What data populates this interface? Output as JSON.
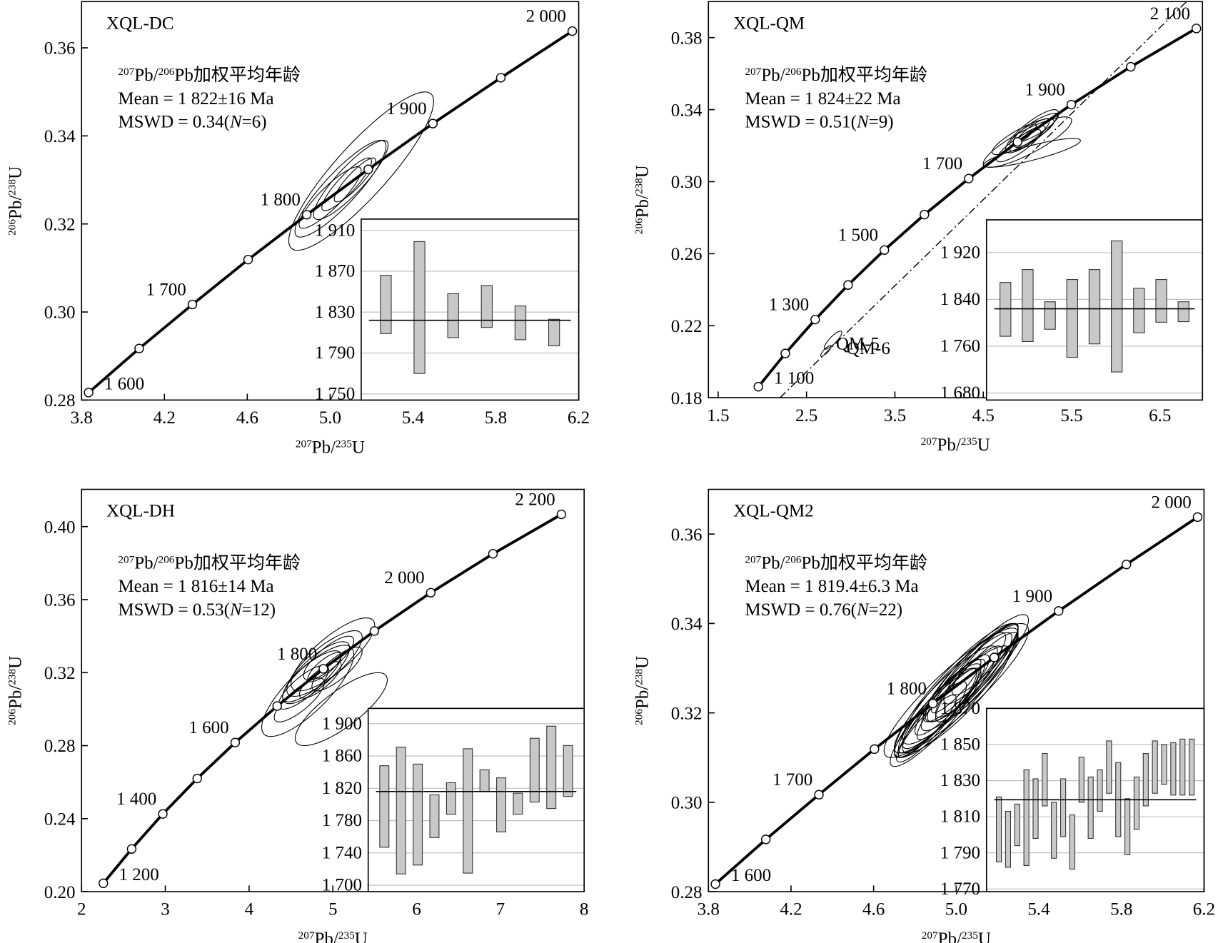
{
  "chart_data": [
    {
      "type": "concordia",
      "title": "XQL-DC",
      "stat_title": [
        {
          "text": "207",
          "sup": true
        },
        {
          "text": "Pb/"
        },
        {
          "text": "206",
          "sup": true
        },
        {
          "text": "Pb加权平均年龄"
        }
      ],
      "stat_mean": [
        {
          "text": "Mean = 1  822±16  Ma"
        }
      ],
      "stat_mswd": [
        {
          "text": "MSWD = 0.34("
        },
        {
          "text": "N",
          "italic": true
        },
        {
          "text": "=6)"
        }
      ],
      "xlabel": [
        {
          "text": "207",
          "sup": true
        },
        {
          "text": "Pb/"
        },
        {
          "text": "235",
          "sup": true
        },
        {
          "text": "U"
        }
      ],
      "ylabel": [
        {
          "text": "206",
          "sup": true
        },
        {
          "text": "Pb/"
        },
        {
          "text": "238",
          "sup": true
        },
        {
          "text": "U"
        }
      ],
      "xlim": [
        3.8,
        6.2
      ],
      "xticks": [
        3.8,
        4.2,
        4.6,
        {
          "value": 5,
          "label": "5.0"
        },
        5.4,
        5.8,
        6.2
      ],
      "ylim": [
        0.28,
        0.3705
      ],
      "yticks": [
        0.28,
        {
          "value": 0.3,
          "label": "0.30"
        },
        0.32,
        0.34,
        0.36
      ],
      "concordia": {
        "labels": [
          "1 600",
          null,
          "1 700",
          null,
          "1 800",
          null,
          "1 900",
          null,
          "2 000"
        ],
        "x": [
          3.834,
          4.078,
          4.335,
          4.604,
          4.887,
          5.184,
          5.496,
          5.824,
          6.169
        ],
        "y": [
          0.2817,
          0.2917,
          0.3017,
          0.3119,
          0.3221,
          0.3324,
          0.3428,
          0.3532,
          0.3638
        ]
      },
      "error_correlation": 0.88,
      "ellipses": {
        "labels": [
          null,
          null,
          null,
          null,
          null,
          null
        ],
        "x": [
          5.15,
          5.05,
          5.1,
          5.0,
          5.08,
          5.12
        ],
        "y": [
          0.332,
          0.328,
          0.33,
          0.326,
          0.329,
          0.33
        ],
        "dx": [
          0.35,
          0.22,
          0.18,
          0.15,
          0.12,
          0.1
        ],
        "dy": [
          0.018,
          0.011,
          0.009,
          0.007,
          0.006,
          0.005
        ]
      },
      "inset": {
        "ylim": [
          1744,
          1921
        ],
        "yticks": [
          {
            "value": 1750,
            "label": "1 750"
          },
          {
            "value": 1790,
            "label": "1 790"
          },
          {
            "value": 1830,
            "label": "1 830"
          },
          {
            "value": 1870,
            "label": "1 870"
          },
          {
            "value": 1910,
            "label": "1 910"
          }
        ],
        "values": [
          1837.5,
          1834.5,
          1826.5,
          1835.5,
          1819.5,
          1810
        ],
        "errors": [
          28.5,
          64.5,
          21.5,
          20.5,
          16.5,
          13
        ],
        "mean": 1822
      }
    },
    {
      "type": "concordia",
      "title": "XQL-QM",
      "stat_title": [
        {
          "text": "207",
          "sup": true
        },
        {
          "text": "Pb/"
        },
        {
          "text": "206",
          "sup": true
        },
        {
          "text": "Pb加权平均年龄"
        }
      ],
      "stat_mean": [
        {
          "text": "Mean = 1 824±22 Ma"
        }
      ],
      "stat_mswd": [
        {
          "text": "MSWD = 0.51("
        },
        {
          "text": "N",
          "italic": true
        },
        {
          "text": "=9)"
        }
      ],
      "xlabel": [
        {
          "text": "207",
          "sup": true
        },
        {
          "text": "Pb/"
        },
        {
          "text": "235",
          "sup": true
        },
        {
          "text": "U"
        }
      ],
      "ylabel": [
        {
          "text": "206",
          "sup": true
        },
        {
          "text": "Pb/"
        },
        {
          "text": "238",
          "sup": true
        },
        {
          "text": "U"
        }
      ],
      "xlim": [
        1.39,
        6.98
      ],
      "xticks": [
        1.5,
        2.5,
        3.5,
        4.5,
        5.5,
        6.5
      ],
      "ylim": [
        0.18,
        0.4
      ],
      "yticks": [
        0.18,
        0.22,
        0.26,
        {
          "value": 0.3,
          "label": "0.30"
        },
        0.34,
        0.38
      ],
      "concordia": {
        "labels": [
          "1 100",
          null,
          "1 300",
          null,
          "1 500",
          null,
          "1 700",
          null,
          "1 900",
          null,
          "2 100"
        ],
        "x": [
          1.955,
          2.26,
          2.598,
          2.97,
          3.381,
          3.834,
          4.335,
          4.887,
          5.496,
          6.169,
          6.911
        ],
        "y": [
          0.1861,
          0.2046,
          0.2234,
          0.2426,
          0.262,
          0.2817,
          0.3017,
          0.3221,
          0.3428,
          0.3638,
          0.3851
        ]
      },
      "discordia": {
        "x": [
          2.2,
          6.8
        ],
        "y": [
          0.18,
          0.4
        ]
      },
      "error_correlation": 0.85,
      "ellipses": {
        "labels": [
          null,
          null,
          null,
          null,
          null,
          null,
          null,
          null,
          null,
          "QM-6",
          "QM-5"
        ],
        "x": [
          5.0,
          4.95,
          5.05,
          4.9,
          5.1,
          5.0,
          5.05,
          4.95,
          5.05,
          2.8,
          2.72
        ],
        "y": [
          0.322,
          0.325,
          0.328,
          0.32,
          0.33,
          0.324,
          0.316,
          0.326,
          0.327,
          0.212,
          0.206
        ],
        "dx": [
          0.5,
          0.35,
          0.3,
          0.25,
          0.25,
          0.2,
          0.55,
          0.15,
          0.2,
          0.1,
          0.06
        ],
        "dy": [
          0.014,
          0.01,
          0.012,
          0.009,
          0.008,
          0.007,
          0.008,
          0.006,
          0.008,
          0.005,
          0.003
        ]
      },
      "inset": {
        "ylim": [
          1668,
          1976
        ],
        "yticks": [
          {
            "value": 1680,
            "label": "1 680"
          },
          {
            "value": 1760,
            "label": "1 760"
          },
          {
            "value": 1840,
            "label": "1 840"
          },
          {
            "value": 1920,
            "label": "1 920"
          }
        ],
        "values": [
          1823,
          1829.5,
          1812.5,
          1807.5,
          1827.5,
          1828,
          1821,
          1837.5,
          1819
        ],
        "errors": [
          46,
          61.5,
          23.5,
          66.5,
          63.5,
          112,
          38,
          36.5,
          17
        ],
        "mean": 1824
      }
    },
    {
      "type": "concordia",
      "title": "XQL-DH",
      "stat_title": [
        {
          "text": "207",
          "sup": true
        },
        {
          "text": "Pb/"
        },
        {
          "text": "206",
          "sup": true
        },
        {
          "text": "Pb加权平均年龄"
        }
      ],
      "stat_mean": [
        {
          "text": "Mean = 1 816±14 Ma"
        }
      ],
      "stat_mswd": [
        {
          "text": "MSWD = 0.53("
        },
        {
          "text": "N",
          "italic": true
        },
        {
          "text": "=12)"
        }
      ],
      "xlabel": [
        {
          "text": "207",
          "sup": true
        },
        {
          "text": "Pb/"
        },
        {
          "text": "235",
          "sup": true
        },
        {
          "text": "U"
        }
      ],
      "ylabel": [
        {
          "text": "206",
          "sup": true
        },
        {
          "text": "Pb/"
        },
        {
          "text": "238",
          "sup": true
        },
        {
          "text": "U"
        }
      ],
      "xlim": [
        2,
        8
      ],
      "xticks": [
        2,
        3,
        4,
        5,
        6,
        7,
        8
      ],
      "ylim": [
        0.2,
        0.4204
      ],
      "yticks": [
        {
          "value": 0.2,
          "label": "0.20"
        },
        0.24,
        0.28,
        0.32,
        0.36,
        {
          "value": 0.4,
          "label": "0.40"
        }
      ],
      "concordia": {
        "labels": [
          "1 200",
          null,
          "1 400",
          null,
          "1 600",
          null,
          "1 800",
          null,
          "2 000",
          null,
          "2 200"
        ],
        "x": [
          2.26,
          2.598,
          2.97,
          3.381,
          3.834,
          4.335,
          4.887,
          5.496,
          6.169,
          6.911,
          7.729
        ],
        "y": [
          0.2046,
          0.2234,
          0.2426,
          0.262,
          0.2817,
          0.3017,
          0.3221,
          0.3428,
          0.3638,
          0.3851,
          0.4067
        ]
      },
      "error_correlation": 0.8,
      "ellipses": {
        "labels": [
          null,
          null,
          null,
          null,
          null,
          null,
          null,
          null,
          null,
          null,
          null,
          null
        ],
        "x": [
          4.7,
          4.9,
          5.0,
          4.8,
          4.6,
          5.1,
          4.75,
          4.95,
          4.85,
          5.05,
          4.65,
          4.9
        ],
        "y": [
          0.31,
          0.325,
          0.33,
          0.32,
          0.305,
          0.3,
          0.318,
          0.328,
          0.316,
          0.322,
          0.312,
          0.323
        ],
        "dx": [
          0.55,
          0.45,
          0.5,
          0.4,
          0.3,
          0.55,
          0.35,
          0.3,
          0.25,
          0.3,
          0.3,
          0.2
        ],
        "dy": [
          0.025,
          0.018,
          0.02,
          0.017,
          0.012,
          0.02,
          0.014,
          0.012,
          0.01,
          0.012,
          0.012,
          0.008
        ]
      },
      "inset": {
        "ylim": [
          1692,
          1919
        ],
        "yticks": [
          {
            "value": 1700,
            "label": "1 700"
          },
          {
            "value": 1740,
            "label": "1 740"
          },
          {
            "value": 1780,
            "label": "1 780"
          },
          {
            "value": 1820,
            "label": "1 820"
          },
          {
            "value": 1860,
            "label": "1 860"
          },
          {
            "value": 1900,
            "label": "1 900"
          }
        ],
        "values": [
          1797.5,
          1792.5,
          1787.5,
          1785.5,
          1807.5,
          1792,
          1829.5,
          1799.5,
          1801,
          1842.5,
          1846,
          1841.5
        ],
        "errors": [
          50.5,
          78.5,
          62.5,
          26.5,
          19.5,
          77,
          13.5,
          33.5,
          13,
          39.5,
          51,
          31.5
        ],
        "mean": 1816
      }
    },
    {
      "type": "concordia",
      "title": "XQL-QM2",
      "stat_title": [
        {
          "text": "207",
          "sup": true
        },
        {
          "text": "Pb/"
        },
        {
          "text": "206",
          "sup": true
        },
        {
          "text": "Pb加权平均年龄"
        }
      ],
      "stat_mean": [
        {
          "text": "Mean = 1 819.4±6.3 Ma"
        }
      ],
      "stat_mswd": [
        {
          "text": "MSWD = 0.76("
        },
        {
          "text": "N",
          "italic": true
        },
        {
          "text": "=22)"
        }
      ],
      "xlabel": [
        {
          "text": "207",
          "sup": true
        },
        {
          "text": "Pb/"
        },
        {
          "text": "235",
          "sup": true
        },
        {
          "text": "U"
        }
      ],
      "ylabel": [
        {
          "text": "206",
          "sup": true
        },
        {
          "text": "Pb/"
        },
        {
          "text": "238",
          "sup": true
        },
        {
          "text": "U"
        }
      ],
      "xlim": [
        3.8,
        6.2
      ],
      "xticks": [
        3.8,
        4.2,
        4.6,
        {
          "value": 5,
          "label": "5.0"
        },
        5.4,
        5.8,
        6.2
      ],
      "ylim": [
        0.28,
        0.37
      ],
      "yticks": [
        0.28,
        {
          "value": 0.3,
          "label": "0.30"
        },
        0.32,
        0.34,
        0.36
      ],
      "concordia": {
        "labels": [
          "1 600",
          null,
          "1 700",
          null,
          "1 800",
          null,
          "1 900",
          null,
          "2 000"
        ],
        "x": [
          3.834,
          4.078,
          4.335,
          4.604,
          4.887,
          5.184,
          5.496,
          5.824,
          6.169
        ],
        "y": [
          0.2817,
          0.2917,
          0.3017,
          0.3119,
          0.3221,
          0.3324,
          0.3428,
          0.3532,
          0.3638
        ]
      },
      "error_correlation": 0.9,
      "ellipses": {
        "labels": [
          null,
          null,
          null,
          null,
          null,
          null,
          null,
          null,
          null,
          null,
          null,
          null,
          null,
          null,
          null,
          null,
          null,
          null,
          null,
          null,
          null,
          null
        ],
        "x": [
          4.95,
          5.0,
          5.05,
          4.9,
          5.1,
          4.98,
          5.02,
          4.92,
          5.08,
          4.96,
          5.04,
          4.88,
          5.12,
          5.0,
          4.94,
          5.06,
          4.9,
          5.0,
          5.1,
          4.86,
          5.14,
          5.0
        ],
        "y": [
          0.323,
          0.325,
          0.327,
          0.32,
          0.33,
          0.324,
          0.326,
          0.321,
          0.329,
          0.322,
          0.328,
          0.318,
          0.331,
          0.325,
          0.322,
          0.327,
          0.319,
          0.323,
          0.328,
          0.317,
          0.332,
          0.326
        ],
        "dx": [
          0.25,
          0.3,
          0.22,
          0.2,
          0.25,
          0.18,
          0.28,
          0.2,
          0.22,
          0.15,
          0.2,
          0.17,
          0.18,
          0.35,
          0.2,
          0.16,
          0.22,
          0.26,
          0.2,
          0.14,
          0.16,
          0.12
        ],
        "dy": [
          0.012,
          0.015,
          0.011,
          0.01,
          0.012,
          0.009,
          0.013,
          0.01,
          0.011,
          0.008,
          0.01,
          0.009,
          0.009,
          0.015,
          0.01,
          0.008,
          0.011,
          0.012,
          0.01,
          0.007,
          0.008,
          0.006
        ]
      },
      "inset": {
        "ylim": [
          1768.5,
          1870
        ],
        "yticks": [
          {
            "value": 1770,
            "label": "1 770"
          },
          {
            "value": 1790,
            "label": "1 790"
          },
          {
            "value": 1810,
            "label": "1 810"
          },
          {
            "value": 1830,
            "label": "1 830"
          },
          {
            "value": 1850,
            "label": "1 850"
          },
          {
            "value": 1870,
            "label": "1 870"
          }
        ],
        "values": [
          1803,
          1797.5,
          1805.5,
          1809.5,
          1814.5,
          1830.5,
          1802.5,
          1815,
          1796,
          1830.5,
          1815,
          1824.5,
          1837.5,
          1819.5,
          1804.5,
          1817.5,
          1830.5,
          1837.5,
          1839,
          1836.5,
          1837.5,
          1837.5
        ],
        "errors": [
          18,
          15.5,
          11.5,
          26.5,
          16.5,
          14.5,
          15.5,
          16,
          15,
          12.5,
          17,
          11.5,
          14.5,
          20.5,
          15.5,
          14.5,
          14.5,
          14.5,
          11,
          14.5,
          15.5,
          15.5
        ],
        "mean": 1819.4
      }
    }
  ]
}
